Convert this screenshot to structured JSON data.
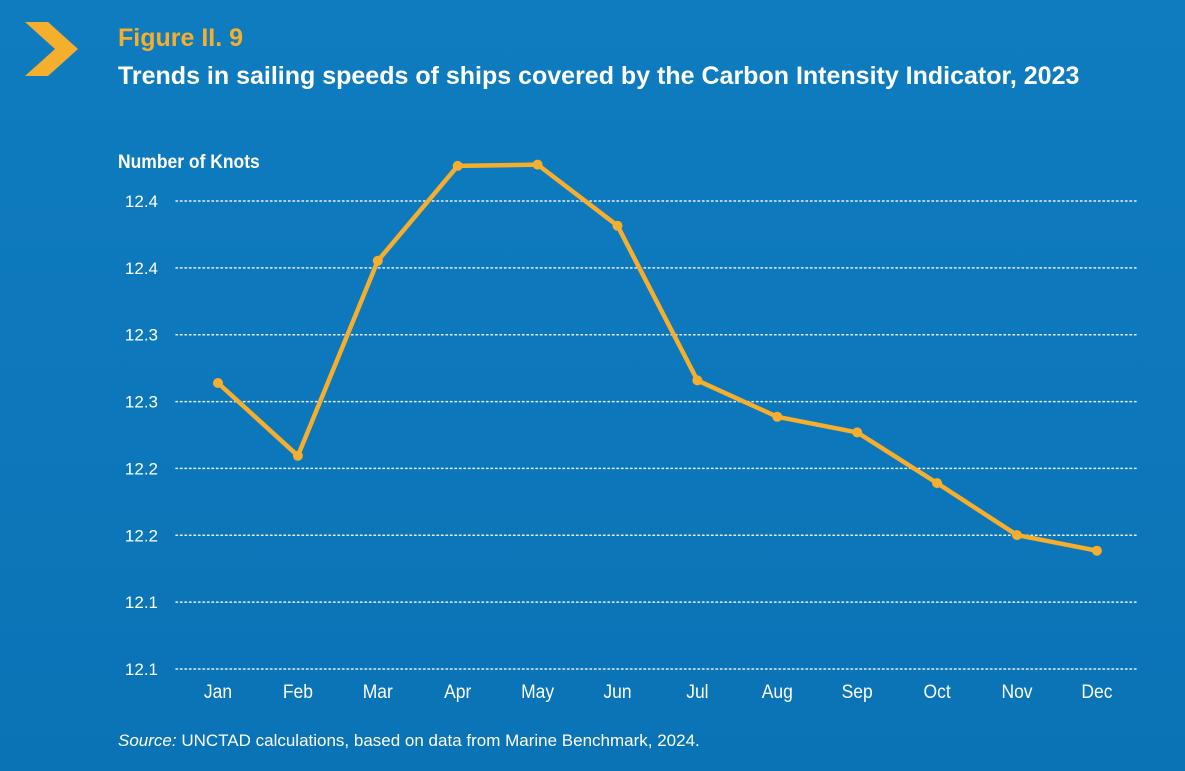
{
  "figure_label": "Figure II. 9",
  "title": "Trends in sailing speeds of ships covered by the Carbon Intensity Indicator, 2023",
  "source": {
    "prefix": "Source:",
    "text": " UNCTAD calculations, based on data from Marine Benchmark, 2024."
  },
  "colors": {
    "background_top": "#0f7cc0",
    "background_bottom": "#0a73b6",
    "accent": "#f6ae2d",
    "text": "#ffffff",
    "grid": "#ffffff"
  },
  "icons": {
    "header_marker": "chevron-right-icon"
  },
  "chart_data": {
    "type": "line",
    "title": "",
    "xlabel": "",
    "ylabel": "Number of Knots",
    "categories": [
      "Jan",
      "Feb",
      "Mar",
      "Apr",
      "May",
      "Jun",
      "Jul",
      "Aug",
      "Sep",
      "Oct",
      "Nov",
      "Dec"
    ],
    "series": [
      {
        "values": [
          12.26,
          12.204,
          12.354,
          12.427,
          12.428,
          12.381,
          12.262,
          12.234,
          12.222,
          12.183,
          12.143,
          12.131
        ]
      }
    ],
    "ylim": [
      12.04,
      12.4
    ],
    "y_ticks": [
      12.4,
      12.35,
      12.3,
      12.25,
      12.2,
      12.15,
      12.1,
      12.05
    ],
    "y_tick_labels": [
      "12.4",
      "12.4",
      "12.3",
      "12.3",
      "12.2",
      "12.2",
      "12.1",
      "12.1"
    ],
    "grid": "horizontal dotted",
    "legend": "none"
  }
}
